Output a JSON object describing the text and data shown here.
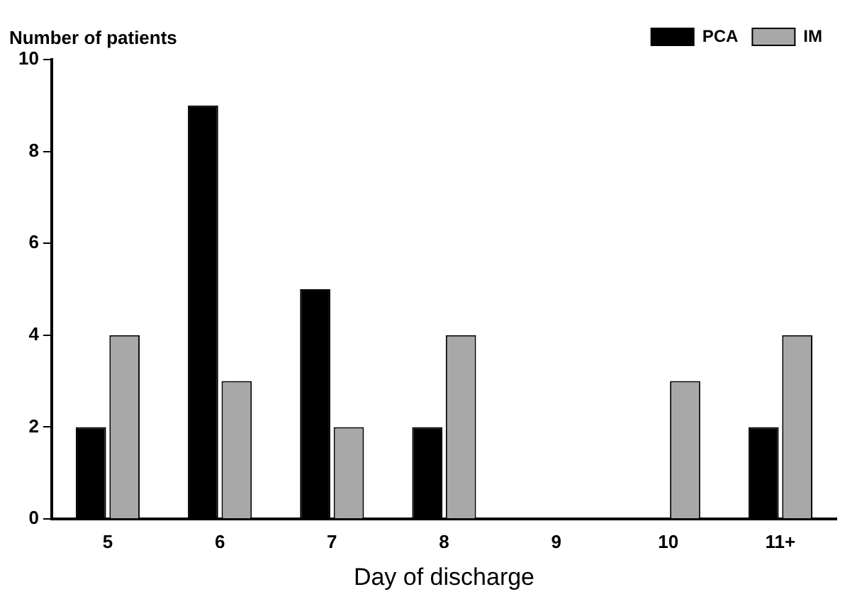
{
  "chart_data": {
    "type": "bar",
    "ylabel": "Number of patients",
    "xlabel": "Day of discharge",
    "categories": [
      "5",
      "6",
      "7",
      "8",
      "9",
      "10",
      "11+"
    ],
    "series": [
      {
        "name": "PCA",
        "color": "#000000",
        "values": [
          2,
          9,
          5,
          2,
          0,
          0,
          2
        ]
      },
      {
        "name": "IM",
        "color": "#a8a8a8",
        "values": [
          4,
          3,
          2,
          4,
          0,
          3,
          4
        ]
      }
    ],
    "ylim": [
      0,
      10
    ],
    "yticks": [
      0,
      2,
      4,
      6,
      8,
      10
    ],
    "grid": false,
    "legend": "top right"
  }
}
